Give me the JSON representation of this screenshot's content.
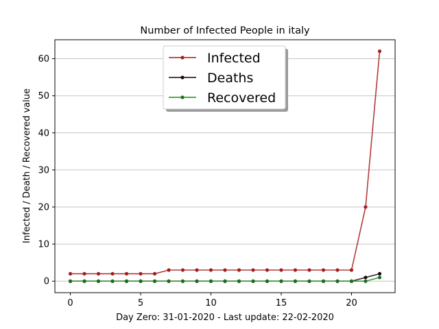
{
  "chart_data": {
    "type": "line",
    "title": "Number of Infected People in italy",
    "xlabel": "Day Zero: 31-01-2020 - Last update: 22-02-2020",
    "ylabel": "Infected / Death / Recovered value",
    "xlim": [
      -1.1,
      23.1
    ],
    "ylim": [
      -3.1,
      65.1
    ],
    "xticks": [
      0,
      5,
      10,
      15,
      20
    ],
    "yticks": [
      0,
      10,
      20,
      30,
      40,
      50,
      60
    ],
    "grid": "horizontal",
    "legend_position": "top-center",
    "x": [
      0,
      1,
      2,
      3,
      4,
      5,
      6,
      7,
      8,
      9,
      10,
      11,
      12,
      13,
      14,
      15,
      16,
      17,
      18,
      19,
      20,
      21,
      22
    ],
    "series": [
      {
        "name": "Infected",
        "color": "#b23a3a",
        "marker": "#a11f1f",
        "values": [
          2,
          2,
          2,
          2,
          2,
          2,
          2,
          3,
          3,
          3,
          3,
          3,
          3,
          3,
          3,
          3,
          3,
          3,
          3,
          3,
          3,
          20,
          62
        ]
      },
      {
        "name": "Deaths",
        "color": "#3a2230",
        "marker": "#1a0a10",
        "values": [
          0,
          0,
          0,
          0,
          0,
          0,
          0,
          0,
          0,
          0,
          0,
          0,
          0,
          0,
          0,
          0,
          0,
          0,
          0,
          0,
          0,
          1,
          2
        ]
      },
      {
        "name": "Recovered",
        "color": "#3a9a3a",
        "marker": "#1e6e1e",
        "values": [
          0,
          0,
          0,
          0,
          0,
          0,
          0,
          0,
          0,
          0,
          0,
          0,
          0,
          0,
          0,
          0,
          0,
          0,
          0,
          0,
          0,
          0,
          1
        ]
      }
    ]
  }
}
